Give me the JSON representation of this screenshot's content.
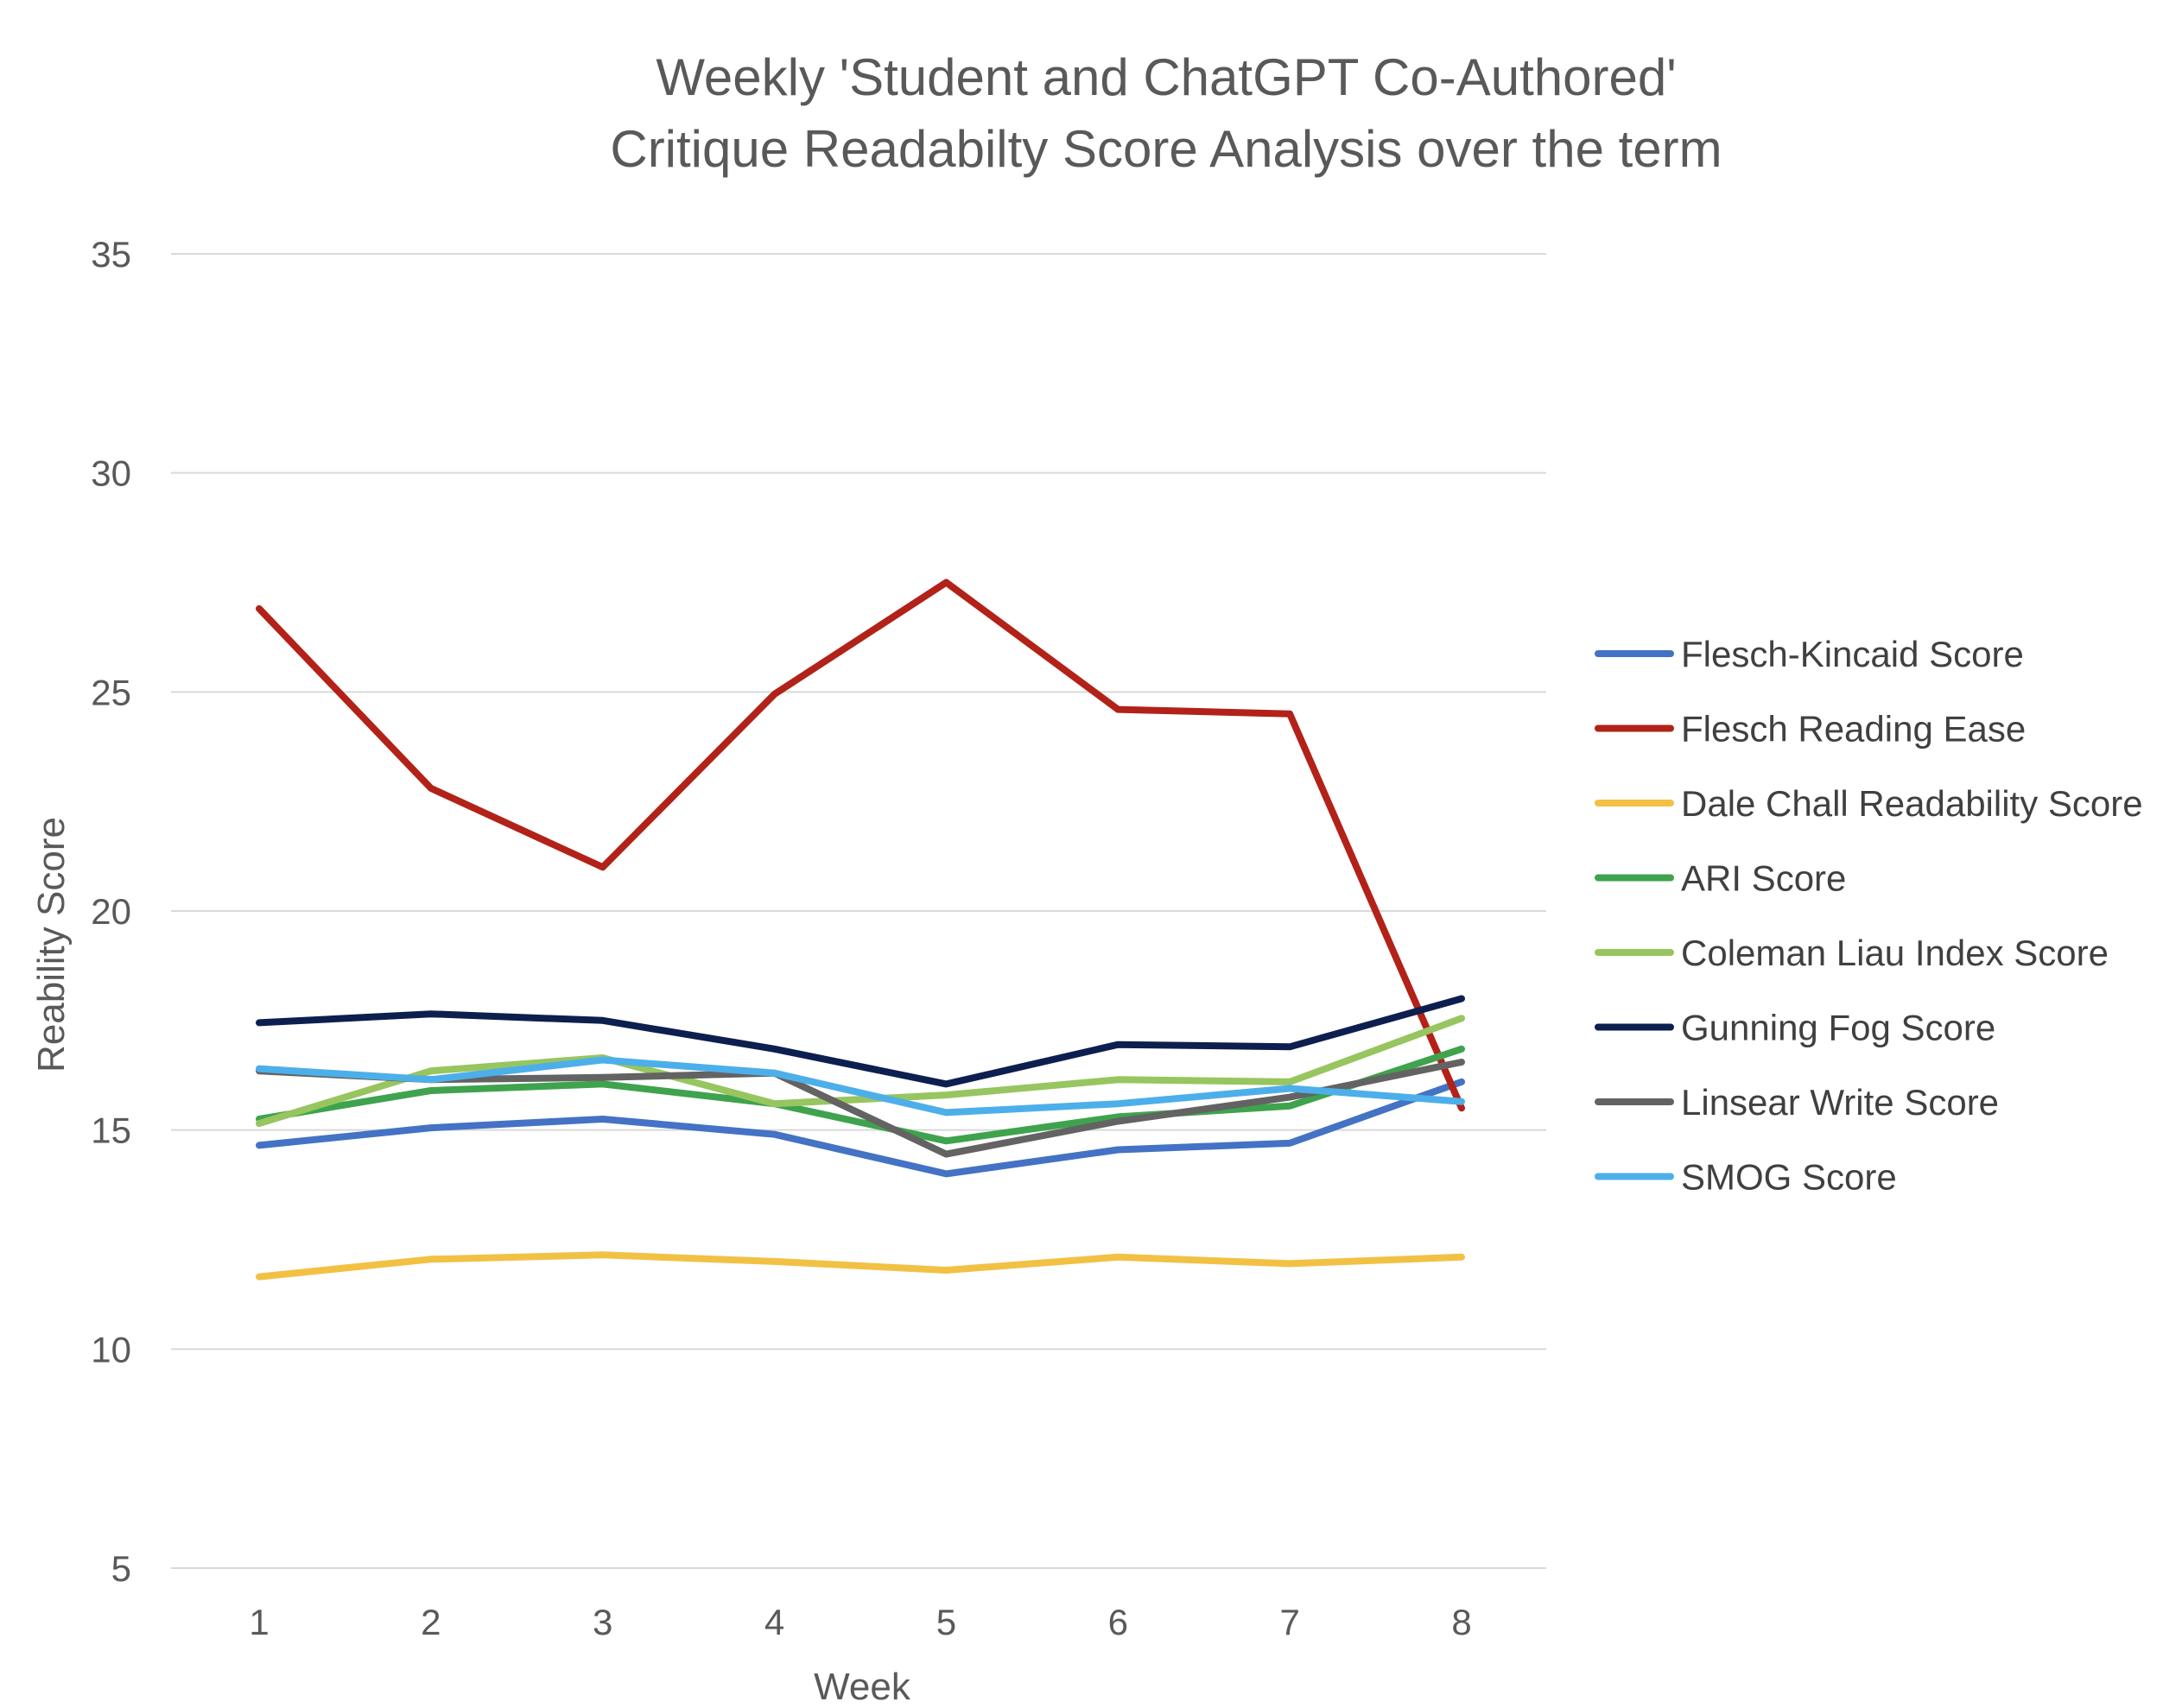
{
  "chart_data": {
    "type": "line",
    "title": "Weekly 'Student and ChatGPT Co-Authored' Critique Readabilty Score Analysis over the term",
    "title_lines": [
      "Weekly 'Student and ChatGPT Co-Authored'",
      "Critique Readabilty Score Analysis over the term"
    ],
    "xlabel": "Week",
    "ylabel": "Reability Score",
    "categories": [
      "1",
      "2",
      "3",
      "4",
      "5",
      "6",
      "7",
      "8"
    ],
    "ylim": [
      5,
      35
    ],
    "yticks": [
      5,
      10,
      15,
      20,
      25,
      30,
      35
    ],
    "grid": "horizontal",
    "legend_position": "right",
    "series": [
      {
        "name": "Flesch-Kincaid Score",
        "color": "#4472C4",
        "values": [
          14.65,
          15.05,
          15.25,
          14.9,
          14.0,
          14.55,
          14.7,
          16.1
        ]
      },
      {
        "name": "Flesch Reading Ease",
        "color": "#B22218",
        "values": [
          26.9,
          22.8,
          21.0,
          24.95,
          27.5,
          24.6,
          24.5,
          15.5
        ]
      },
      {
        "name": "Dale Chall Readability Score",
        "color": "#F2C144",
        "values": [
          11.65,
          12.05,
          12.15,
          12.0,
          11.8,
          12.1,
          11.95,
          12.1
        ]
      },
      {
        "name": "ARI Score",
        "color": "#3FA34D",
        "values": [
          15.25,
          15.9,
          16.05,
          15.6,
          14.75,
          15.3,
          15.55,
          16.85
        ]
      },
      {
        "name": "Coleman Liau Index Score",
        "color": "#97C55F",
        "values": [
          15.15,
          16.35,
          16.65,
          15.6,
          15.8,
          16.15,
          16.1,
          17.55
        ]
      },
      {
        "name": "Gunning Fog Score",
        "color": "#0D1F4F",
        "values": [
          17.45,
          17.65,
          17.5,
          16.85,
          16.05,
          16.95,
          16.9,
          18.0
        ]
      },
      {
        "name": "Linsear Write Score",
        "color": "#636363",
        "values": [
          16.35,
          16.15,
          16.2,
          16.3,
          14.45,
          15.2,
          15.75,
          16.55
        ]
      },
      {
        "name": "SMOG Score",
        "color": "#4DAFEA",
        "values": [
          16.4,
          16.15,
          16.6,
          16.3,
          15.4,
          15.6,
          15.95,
          15.65
        ]
      }
    ]
  }
}
